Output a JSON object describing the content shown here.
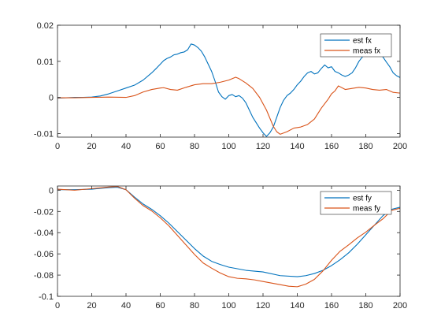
{
  "chart_data": [
    {
      "type": "line",
      "title": "",
      "xlabel": "",
      "ylabel": "",
      "xlim": [
        0,
        200
      ],
      "ylim": [
        -0.011,
        0.02
      ],
      "xticks": [
        0,
        20,
        40,
        60,
        80,
        100,
        120,
        140,
        160,
        180,
        200
      ],
      "xtick_labels": [
        "0",
        "20",
        "40",
        "60",
        "80",
        "100",
        "120",
        "140",
        "160",
        "180",
        "200"
      ],
      "yticks": [
        -0.01,
        0,
        0.01,
        0.02
      ],
      "ytick_labels": [
        "-0.01",
        "0",
        "0.01",
        "0.02"
      ],
      "grid": false,
      "legend_position": "top-right",
      "series": [
        {
          "name": "est fx",
          "color": "#0072BD",
          "x": [
            0,
            5,
            10,
            15,
            20,
            25,
            30,
            35,
            40,
            45,
            50,
            55,
            58,
            60,
            62,
            64,
            66,
            68,
            70,
            72,
            74,
            76,
            78,
            80,
            82,
            84,
            86,
            88,
            90,
            92,
            94,
            96,
            98,
            100,
            102,
            104,
            106,
            108,
            110,
            112,
            114,
            116,
            118,
            120,
            122,
            124,
            126,
            128,
            130,
            132,
            134,
            136,
            138,
            140,
            142,
            144,
            146,
            148,
            150,
            152,
            154,
            156,
            158,
            160,
            162,
            164,
            166,
            168,
            170,
            172,
            174,
            176,
            178,
            180,
            182,
            184,
            186,
            188,
            190,
            192,
            194,
            196,
            198,
            200
          ],
          "y": [
            -0.0002,
            -0.0001,
            0,
            0,
            0.0001,
            0.0004,
            0.001,
            0.0018,
            0.0026,
            0.0034,
            0.0048,
            0.0068,
            0.0082,
            0.0092,
            0.0102,
            0.0108,
            0.0112,
            0.0118,
            0.012,
            0.0124,
            0.0126,
            0.0132,
            0.0148,
            0.0145,
            0.0138,
            0.0128,
            0.0112,
            0.0092,
            0.0072,
            0.0045,
            0.0015,
            0.0002,
            -0.0005,
            0.0005,
            0.0008,
            0.0002,
            0.0005,
            -0.0002,
            -0.0015,
            -0.0035,
            -0.0055,
            -0.007,
            -0.0085,
            -0.0098,
            -0.0108,
            -0.0098,
            -0.0082,
            -0.0055,
            -0.0028,
            -0.0008,
            0.0005,
            0.0012,
            0.0022,
            0.0035,
            0.0045,
            0.0058,
            0.0068,
            0.0072,
            0.0065,
            0.0068,
            0.008,
            0.009,
            0.0082,
            0.0085,
            0.0072,
            0.0068,
            0.0062,
            0.0058,
            0.0062,
            0.0068,
            0.0082,
            0.01,
            0.0112,
            0.0124,
            0.013,
            0.0134,
            0.0132,
            0.0126,
            0.0112,
            0.0098,
            0.0085,
            0.0068,
            0.006,
            0.0055
          ]
        },
        {
          "name": "meas fx",
          "color": "#D95319",
          "x": [
            0,
            10,
            20,
            30,
            40,
            45,
            50,
            55,
            60,
            62,
            66,
            70,
            75,
            80,
            85,
            90,
            95,
            100,
            104,
            106,
            110,
            114,
            118,
            122,
            126,
            128,
            130,
            134,
            138,
            142,
            146,
            150,
            154,
            158,
            160,
            162,
            164,
            168,
            172,
            176,
            180,
            184,
            188,
            192,
            196,
            200
          ],
          "y": [
            -0.0001,
            -0.0001,
            0,
            0.0001,
            0,
            0.0005,
            0.0015,
            0.0022,
            0.0026,
            0.0027,
            0.0022,
            0.002,
            0.0028,
            0.0035,
            0.0038,
            0.0038,
            0.0042,
            0.0048,
            0.0056,
            0.0052,
            0.004,
            0.0025,
            0,
            -0.0035,
            -0.008,
            -0.0095,
            -0.0102,
            -0.0095,
            -0.0085,
            -0.0082,
            -0.0075,
            -0.006,
            -0.003,
            -0.0005,
            0.001,
            0.0018,
            0.0032,
            0.0022,
            0.0025,
            0.0028,
            0.0026,
            0.0022,
            0.002,
            0.0022,
            0.0014,
            0.0012
          ]
        }
      ]
    },
    {
      "type": "line",
      "title": "",
      "xlabel": "",
      "ylabel": "",
      "xlim": [
        0,
        200
      ],
      "ylim": [
        -0.1,
        0.004
      ],
      "xticks": [
        0,
        20,
        40,
        60,
        80,
        100,
        120,
        140,
        160,
        180,
        200
      ],
      "xtick_labels": [
        "0",
        "20",
        "40",
        "60",
        "80",
        "100",
        "120",
        "140",
        "160",
        "180",
        "200"
      ],
      "yticks": [
        -0.1,
        -0.08,
        -0.06,
        -0.04,
        -0.02,
        0
      ],
      "ytick_labels": [
        "-0.1",
        "-0.08",
        "-0.06",
        "-0.04",
        "-0.02",
        "0"
      ],
      "grid": false,
      "legend_position": "top-right",
      "series": [
        {
          "name": "est fy",
          "color": "#0072BD",
          "x": [
            0,
            10,
            20,
            30,
            35,
            40,
            45,
            50,
            55,
            60,
            65,
            70,
            75,
            80,
            85,
            90,
            95,
            100,
            110,
            120,
            130,
            140,
            145,
            150,
            155,
            160,
            165,
            170,
            175,
            180,
            185,
            190,
            195,
            200
          ],
          "y": [
            0.0005,
            0.0005,
            0.001,
            0.0025,
            0.0028,
            0.0005,
            -0.0065,
            -0.013,
            -0.018,
            -0.024,
            -0.031,
            -0.039,
            -0.047,
            -0.055,
            -0.062,
            -0.067,
            -0.07,
            -0.0725,
            -0.0755,
            -0.077,
            -0.0805,
            -0.0815,
            -0.0805,
            -0.0785,
            -0.0755,
            -0.071,
            -0.0655,
            -0.059,
            -0.051,
            -0.042,
            -0.033,
            -0.024,
            -0.018,
            -0.016
          ]
        },
        {
          "name": "meas fy",
          "color": "#D95319",
          "x": [
            0,
            10,
            20,
            30,
            35,
            40,
            45,
            50,
            55,
            60,
            65,
            70,
            75,
            80,
            85,
            90,
            95,
            100,
            105,
            110,
            115,
            120,
            125,
            130,
            135,
            140,
            145,
            150,
            155,
            160,
            165,
            170,
            175,
            180,
            185,
            190,
            195,
            200
          ],
          "y": [
            0.001,
            0,
            0.0015,
            0.003,
            0.0035,
            0.0005,
            -0.0075,
            -0.0145,
            -0.0195,
            -0.026,
            -0.0335,
            -0.0425,
            -0.0515,
            -0.0605,
            -0.0685,
            -0.0735,
            -0.078,
            -0.0815,
            -0.083,
            -0.0835,
            -0.0845,
            -0.086,
            -0.0875,
            -0.089,
            -0.0905,
            -0.091,
            -0.0885,
            -0.084,
            -0.076,
            -0.066,
            -0.0575,
            -0.0515,
            -0.045,
            -0.0395,
            -0.033,
            -0.027,
            -0.019,
            -0.017
          ]
        }
      ]
    }
  ]
}
